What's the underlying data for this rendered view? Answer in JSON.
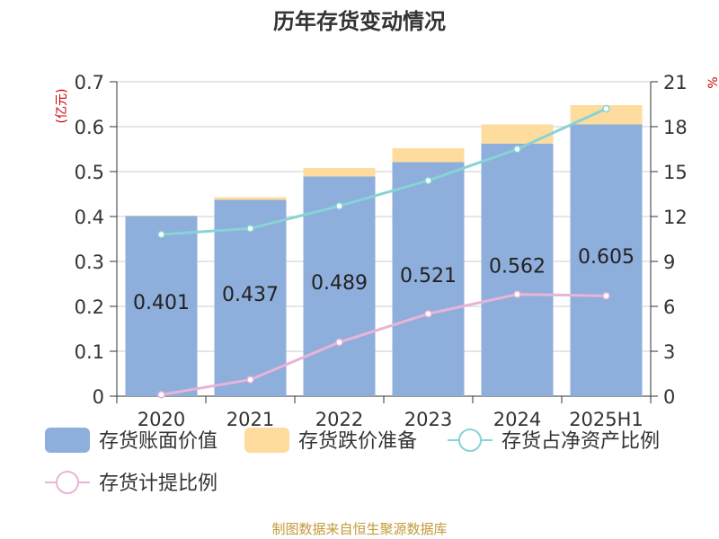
{
  "chart_data": {
    "type": "bar",
    "title": "历年存货变动情况",
    "categories": [
      "2020",
      "2021",
      "2022",
      "2023",
      "2024",
      "2025H1"
    ],
    "y_left": {
      "label": "(亿元)",
      "ylim": [
        0,
        0.7
      ],
      "ticks": [
        "0",
        "0.1",
        "0.2",
        "0.3",
        "0.4",
        "0.5",
        "0.6",
        "0.7"
      ]
    },
    "y_right": {
      "label": "%",
      "ylim": [
        0,
        21
      ],
      "ticks": [
        "0",
        "3",
        "6",
        "9",
        "12",
        "15",
        "18",
        "21"
      ]
    },
    "series": [
      {
        "name": "存货账面价值",
        "kind": "bar",
        "axis": "left",
        "stack": "s",
        "color": "#8eaedb",
        "values": [
          0.401,
          0.437,
          0.489,
          0.521,
          0.562,
          0.605
        ],
        "labels": [
          "0.401",
          "0.437",
          "0.489",
          "0.521",
          "0.562",
          "0.605"
        ]
      },
      {
        "name": "存货跌价准备",
        "kind": "bar",
        "axis": "left",
        "stack": "s",
        "color": "#fddc9e",
        "values": [
          0.001,
          0.006,
          0.019,
          0.031,
          0.043,
          0.043
        ]
      },
      {
        "name": "存货占净资产比例",
        "kind": "line",
        "axis": "right",
        "color": "#88d3d6",
        "values": [
          10.8,
          11.2,
          12.7,
          14.4,
          16.5,
          19.2
        ]
      },
      {
        "name": "存货计提比例",
        "kind": "line",
        "axis": "right",
        "color": "#e8b4d8",
        "values": [
          0.1,
          1.1,
          3.6,
          5.5,
          6.8,
          6.7
        ]
      }
    ],
    "grid": true,
    "legend_position": "bottom"
  },
  "source_text": "制图数据来自恒生聚源数据库"
}
